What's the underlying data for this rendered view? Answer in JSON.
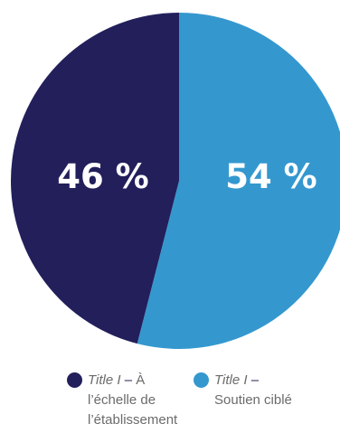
{
  "chart_data": {
    "type": "pie",
    "slices": [
      {
        "value": 54,
        "label": "54 %",
        "legend_title": "Title I",
        "legend_dash": "–",
        "legend_lines": [
          "Soutien ciblé"
        ],
        "color": "#3498cf"
      },
      {
        "value": 46,
        "label": "46 %",
        "legend_title": "Title I",
        "legend_dash": "–",
        "legend_first": "À",
        "legend_lines": [
          "l’échelle de",
          "l’établissement"
        ],
        "color": "#221f5b"
      }
    ]
  }
}
